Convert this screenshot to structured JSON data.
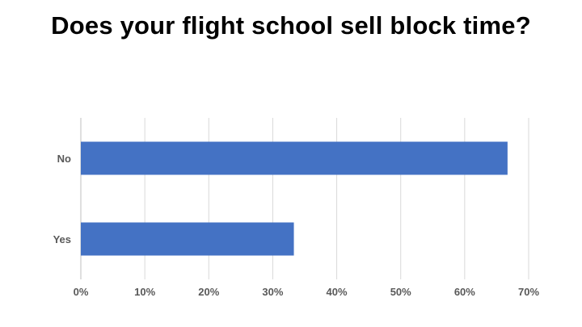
{
  "title": "Does your flight school sell block time?",
  "chart_data": {
    "type": "bar",
    "orientation": "horizontal",
    "categories": [
      "No",
      "Yes"
    ],
    "values": [
      66.7,
      33.3
    ],
    "unit": "%",
    "xlim": [
      0,
      70
    ],
    "xticks": [
      "0%",
      "10%",
      "20%",
      "30%",
      "40%",
      "50%",
      "60%",
      "70%"
    ],
    "grid": "vertical",
    "bar_color": "#4472C4",
    "legend": "none"
  }
}
